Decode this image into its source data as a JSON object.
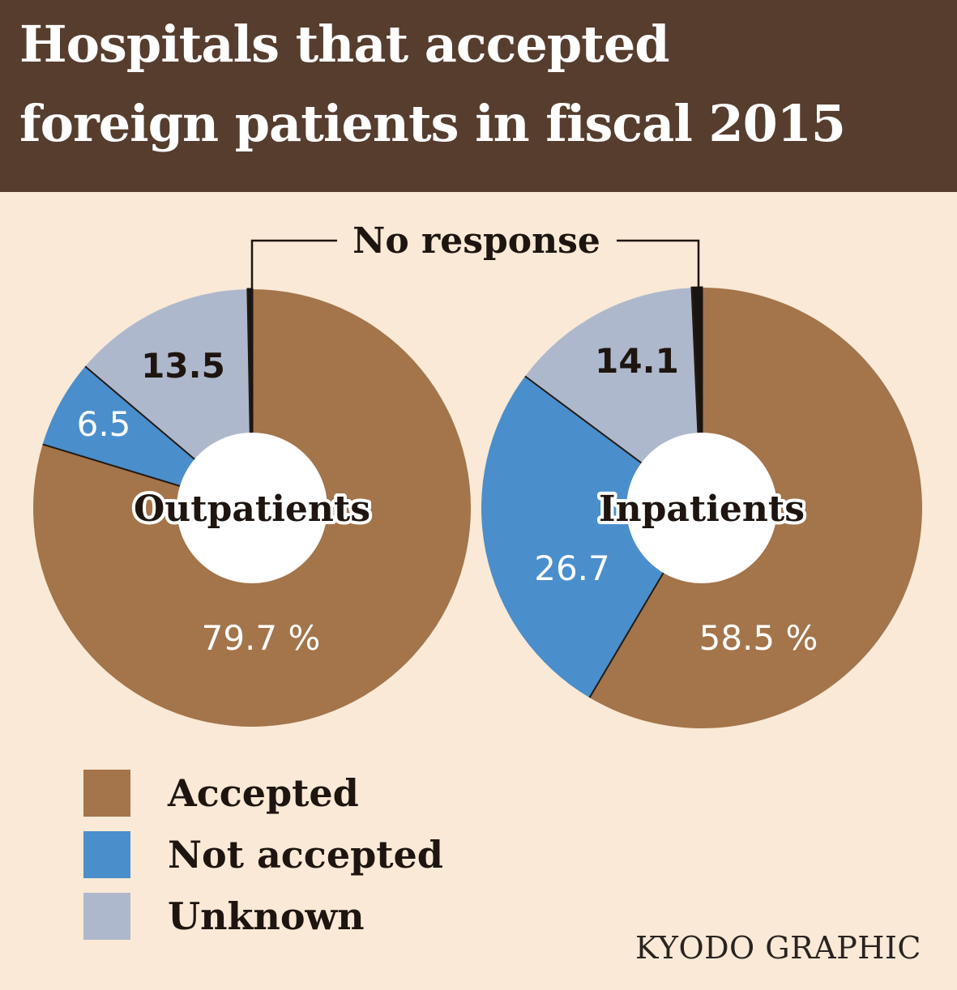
{
  "title": {
    "line1": "Hospitals that accepted",
    "line2": "foreign patients in fiscal 2015"
  },
  "chart_data": {
    "type": "pie",
    "annotation": "No response",
    "percent_sign": "%",
    "categories": [
      "Accepted",
      "Not accepted",
      "Unknown",
      "No response"
    ],
    "colors": {
      "Accepted": "#a4744a",
      "Not accepted": "#4a8ecc",
      "Unknown": "#aeb8cc",
      "No response": "#1a1410"
    },
    "charts": [
      {
        "name": "Outpatients",
        "values": {
          "Accepted": 79.7,
          "Not accepted": 6.5,
          "Unknown": 13.5,
          "No response": 0.3
        },
        "labels": {
          "Accepted": "79.7",
          "Not accepted": "6.5",
          "Unknown": "13.5"
        }
      },
      {
        "name": "Inpatients",
        "values": {
          "Accepted": 58.5,
          "Not accepted": 26.7,
          "Unknown": 14.1,
          "No response": 0.7
        },
        "labels": {
          "Accepted": "58.5",
          "Not accepted": "26.7",
          "Unknown": "14.1"
        }
      }
    ]
  },
  "legend": [
    {
      "label": "Accepted",
      "color": "#a4744a"
    },
    {
      "label": "Not accepted",
      "color": "#4a8ecc"
    },
    {
      "label": "Unknown",
      "color": "#aeb8cc"
    }
  ],
  "credit": "KYODO GRAPHIC"
}
